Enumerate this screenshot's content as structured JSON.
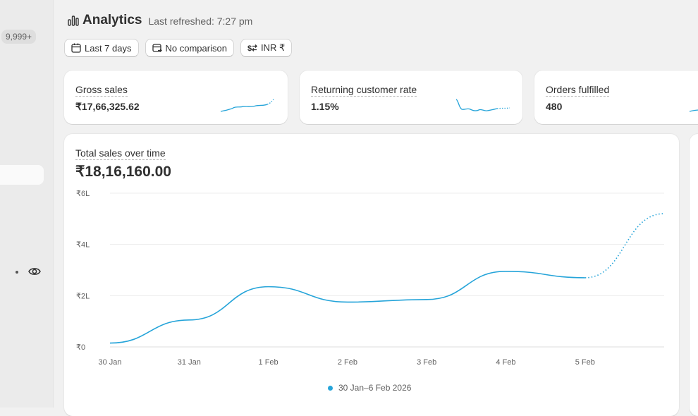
{
  "sidebar": {
    "badge": "9,999+"
  },
  "header": {
    "title": "Analytics",
    "refreshed": "Last refreshed: 7:27 pm"
  },
  "filters": {
    "date_range": "Last 7 days",
    "comparison": "No comparison",
    "currency": "INR ₹"
  },
  "metrics": [
    {
      "label": "Gross sales",
      "value": "₹17,66,325.62"
    },
    {
      "label": "Returning customer rate",
      "value": "1.15%"
    },
    {
      "label": "Orders fulfilled",
      "value": "480"
    }
  ],
  "colors": {
    "accent": "#25a4d9",
    "grid": "#ececec",
    "card": "#ffffff",
    "background": "#f1f1f1"
  },
  "chart_data": {
    "type": "line",
    "title": "Total sales over time",
    "total": "₹18,16,160.00",
    "categories": [
      "30 Jan",
      "31 Jan",
      "1 Feb",
      "2 Feb",
      "3 Feb",
      "4 Feb",
      "5 Feb"
    ],
    "x": [
      "30 Jan",
      "31 Jan",
      "1 Feb",
      "2 Feb",
      "3 Feb",
      "4 Feb",
      "5 Feb",
      "6 Feb"
    ],
    "yticks": [
      0,
      2,
      4,
      6
    ],
    "ytick_labels": [
      "₹0",
      "₹2L",
      "₹4L",
      "₹6L"
    ],
    "ylim": [
      0,
      6
    ],
    "y_unit": "lakh ₹",
    "grid": true,
    "legend_position": "bottom",
    "series": [
      {
        "name": "30 Jan–6 Feb 2026",
        "values": [
          0.15,
          1.05,
          2.35,
          1.75,
          1.85,
          2.95,
          2.7,
          5.2
        ],
        "incomplete_from_index": 6
      }
    ]
  }
}
